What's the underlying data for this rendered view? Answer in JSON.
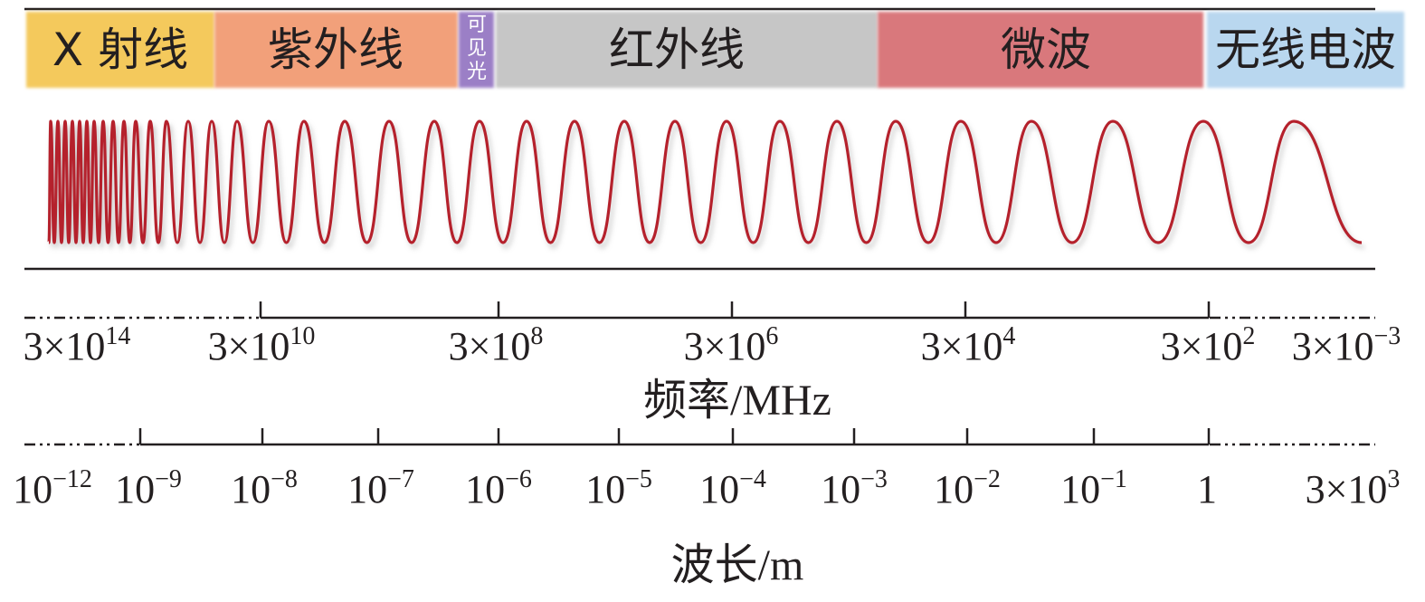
{
  "bands": [
    {
      "id": "xray",
      "label": "X 射线",
      "color": "#f4c95b"
    },
    {
      "id": "uv",
      "label": "紫外线",
      "color": "#f2a07a"
    },
    {
      "id": "visible",
      "label": "可见光",
      "color": "#9b7fc6"
    },
    {
      "id": "ir",
      "label": "红外线",
      "color": "#c6c6c6"
    },
    {
      "id": "microwave",
      "label": "微波",
      "color": "#d9787c"
    },
    {
      "id": "radio",
      "label": "无线电波",
      "color": "#b9d7ef"
    }
  ],
  "wave_color": "#b5212c",
  "frequency_axis": {
    "title": "频率/MHz",
    "ticks": [
      {
        "label": "3×10",
        "exp": "14"
      },
      {
        "label": "3×10",
        "exp": "10"
      },
      {
        "label": "3×10",
        "exp": "8"
      },
      {
        "label": "3×10",
        "exp": "6"
      },
      {
        "label": "3×10",
        "exp": "4"
      },
      {
        "label": "3×10",
        "exp": "2"
      },
      {
        "label": "3×10",
        "exp": "−3"
      }
    ]
  },
  "wavelength_axis": {
    "title": "波长/m",
    "ticks": [
      {
        "label": "10",
        "exp": "−12"
      },
      {
        "label": "10",
        "exp": "−9"
      },
      {
        "label": "10",
        "exp": "−8"
      },
      {
        "label": "10",
        "exp": "−7"
      },
      {
        "label": "10",
        "exp": "−6"
      },
      {
        "label": "10",
        "exp": "−5"
      },
      {
        "label": "10",
        "exp": "−4"
      },
      {
        "label": "10",
        "exp": "−3"
      },
      {
        "label": "10",
        "exp": "−2"
      },
      {
        "label": "10",
        "exp": "−1"
      },
      {
        "label": "1",
        "exp": ""
      },
      {
        "label": "3×10",
        "exp": "3"
      }
    ]
  }
}
